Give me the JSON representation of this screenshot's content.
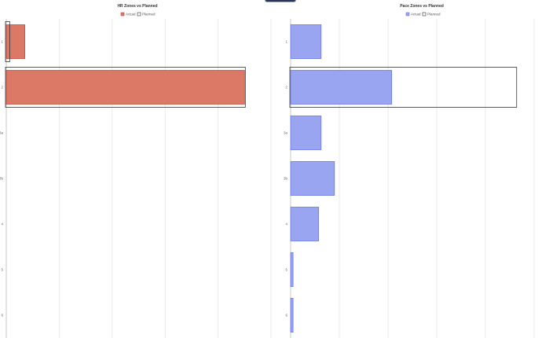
{
  "chart_data": [
    {
      "type": "bar",
      "orientation": "horizontal",
      "title": "HR Zones vs Planned",
      "categories": [
        "1",
        "2",
        "3a",
        "3b",
        "4",
        "5",
        "6"
      ],
      "series": [
        {
          "name": "Actual",
          "values": [
            7,
            90,
            0,
            0,
            0,
            0,
            0
          ]
        },
        {
          "name": "Planned",
          "values": [
            1,
            90,
            0,
            0,
            0,
            0,
            0
          ]
        }
      ],
      "xlim": [
        0,
        100
      ],
      "grid": true,
      "legend": "top-center",
      "colors": {
        "actual_fill": "#db7866",
        "actual_stroke": "#c0503c",
        "planned_stroke": "#333333"
      }
    },
    {
      "type": "bar",
      "orientation": "horizontal",
      "title": "Pace Zones vs Planned",
      "categories": [
        "1",
        "2",
        "3a",
        "3b",
        "4",
        "5",
        "6"
      ],
      "series": [
        {
          "name": "Actual",
          "values": [
            12.5,
            41.5,
            12.5,
            18,
            11.5,
            1,
            1
          ]
        },
        {
          "name": "Planned",
          "values": [
            0,
            92.5,
            0,
            0,
            0,
            0,
            0
          ]
        }
      ],
      "xlim": [
        0,
        100
      ],
      "grid": true,
      "legend": "top-center",
      "colors": {
        "actual_fill": "#9aa5f2",
        "actual_stroke": "#6b79e6",
        "planned_stroke": "#333333"
      }
    }
  ]
}
